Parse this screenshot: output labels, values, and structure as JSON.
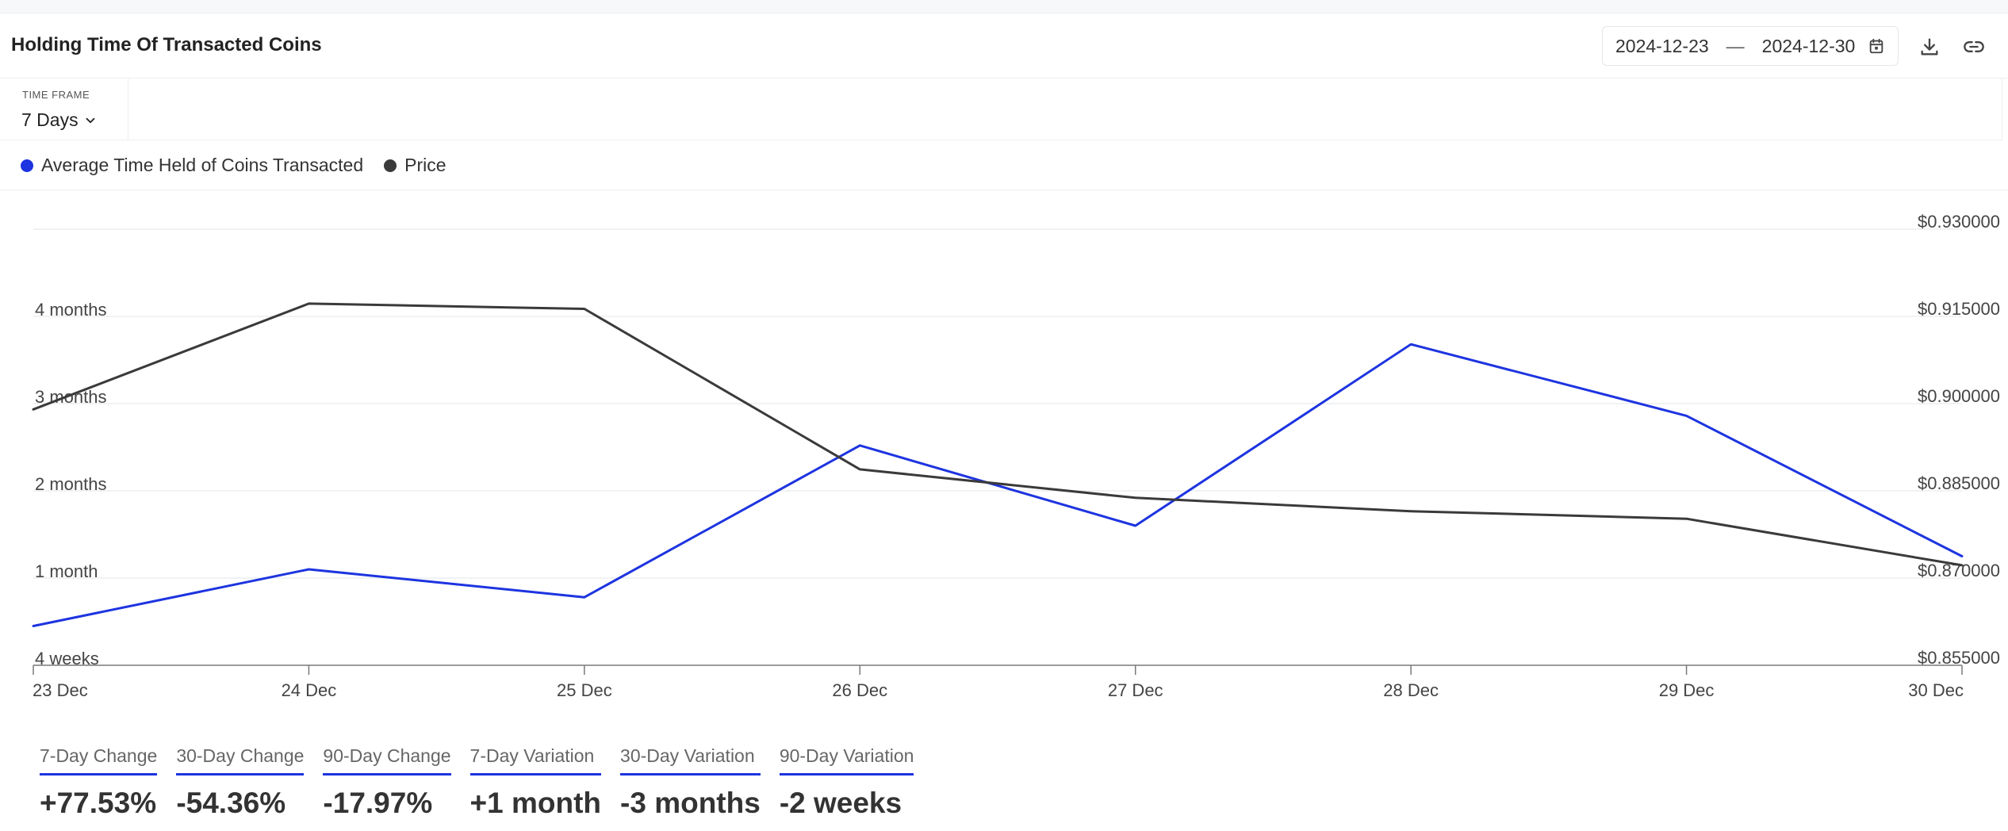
{
  "header": {
    "title": "Holding Time Of Transacted Coins",
    "date_start": "2024-12-23",
    "date_separator": "—",
    "date_end": "2024-12-30"
  },
  "timeframe": {
    "label": "TIME FRAME",
    "value": "7 Days"
  },
  "icons": {
    "calendar": "calendar-icon",
    "download": "download-icon",
    "link": "link-icon",
    "chevron": "chevron-down-icon"
  },
  "colors": {
    "accent": "#1d34e0",
    "price": "#3a3a3a"
  },
  "chart_data": {
    "type": "line",
    "x": [
      "23 Dec",
      "24 Dec",
      "25 Dec",
      "26 Dec",
      "27 Dec",
      "28 Dec",
      "29 Dec",
      "30 Dec"
    ],
    "y_left_ticks": [
      "4 weeks",
      "1 month",
      "2 months",
      "3 months",
      "4 months"
    ],
    "y_right_ticks": [
      "$0.855000",
      "$0.870000",
      "$0.885000",
      "$0.900000",
      "$0.915000",
      "$0.930000"
    ],
    "y_right_range": [
      0.855,
      0.93
    ],
    "grid": true,
    "legend_position": "top-left",
    "series": [
      {
        "name": "Average Time Held of Coins Transacted",
        "axis": "left",
        "color": "#1d34e0",
        "values_tick_units": [
          0.45,
          1.1,
          0.78,
          2.52,
          1.6,
          3.68,
          2.86,
          1.25
        ]
      },
      {
        "name": "Price",
        "axis": "right",
        "color": "#3a3a3a",
        "values": [
          0.899,
          0.9172,
          0.9163,
          0.8887,
          0.8838,
          0.8815,
          0.8802,
          0.8722
        ]
      }
    ]
  },
  "stats": [
    {
      "label": "7-Day Change",
      "value": "+77.53%"
    },
    {
      "label": "30-Day Change",
      "value": "-54.36%"
    },
    {
      "label": "90-Day Change",
      "value": "-17.97%"
    },
    {
      "label": "7-Day Variation",
      "value": "+1 month"
    },
    {
      "label": "30-Day Variation",
      "value": "-3 months"
    },
    {
      "label": "90-Day Variation",
      "value": "-2 weeks"
    }
  ]
}
